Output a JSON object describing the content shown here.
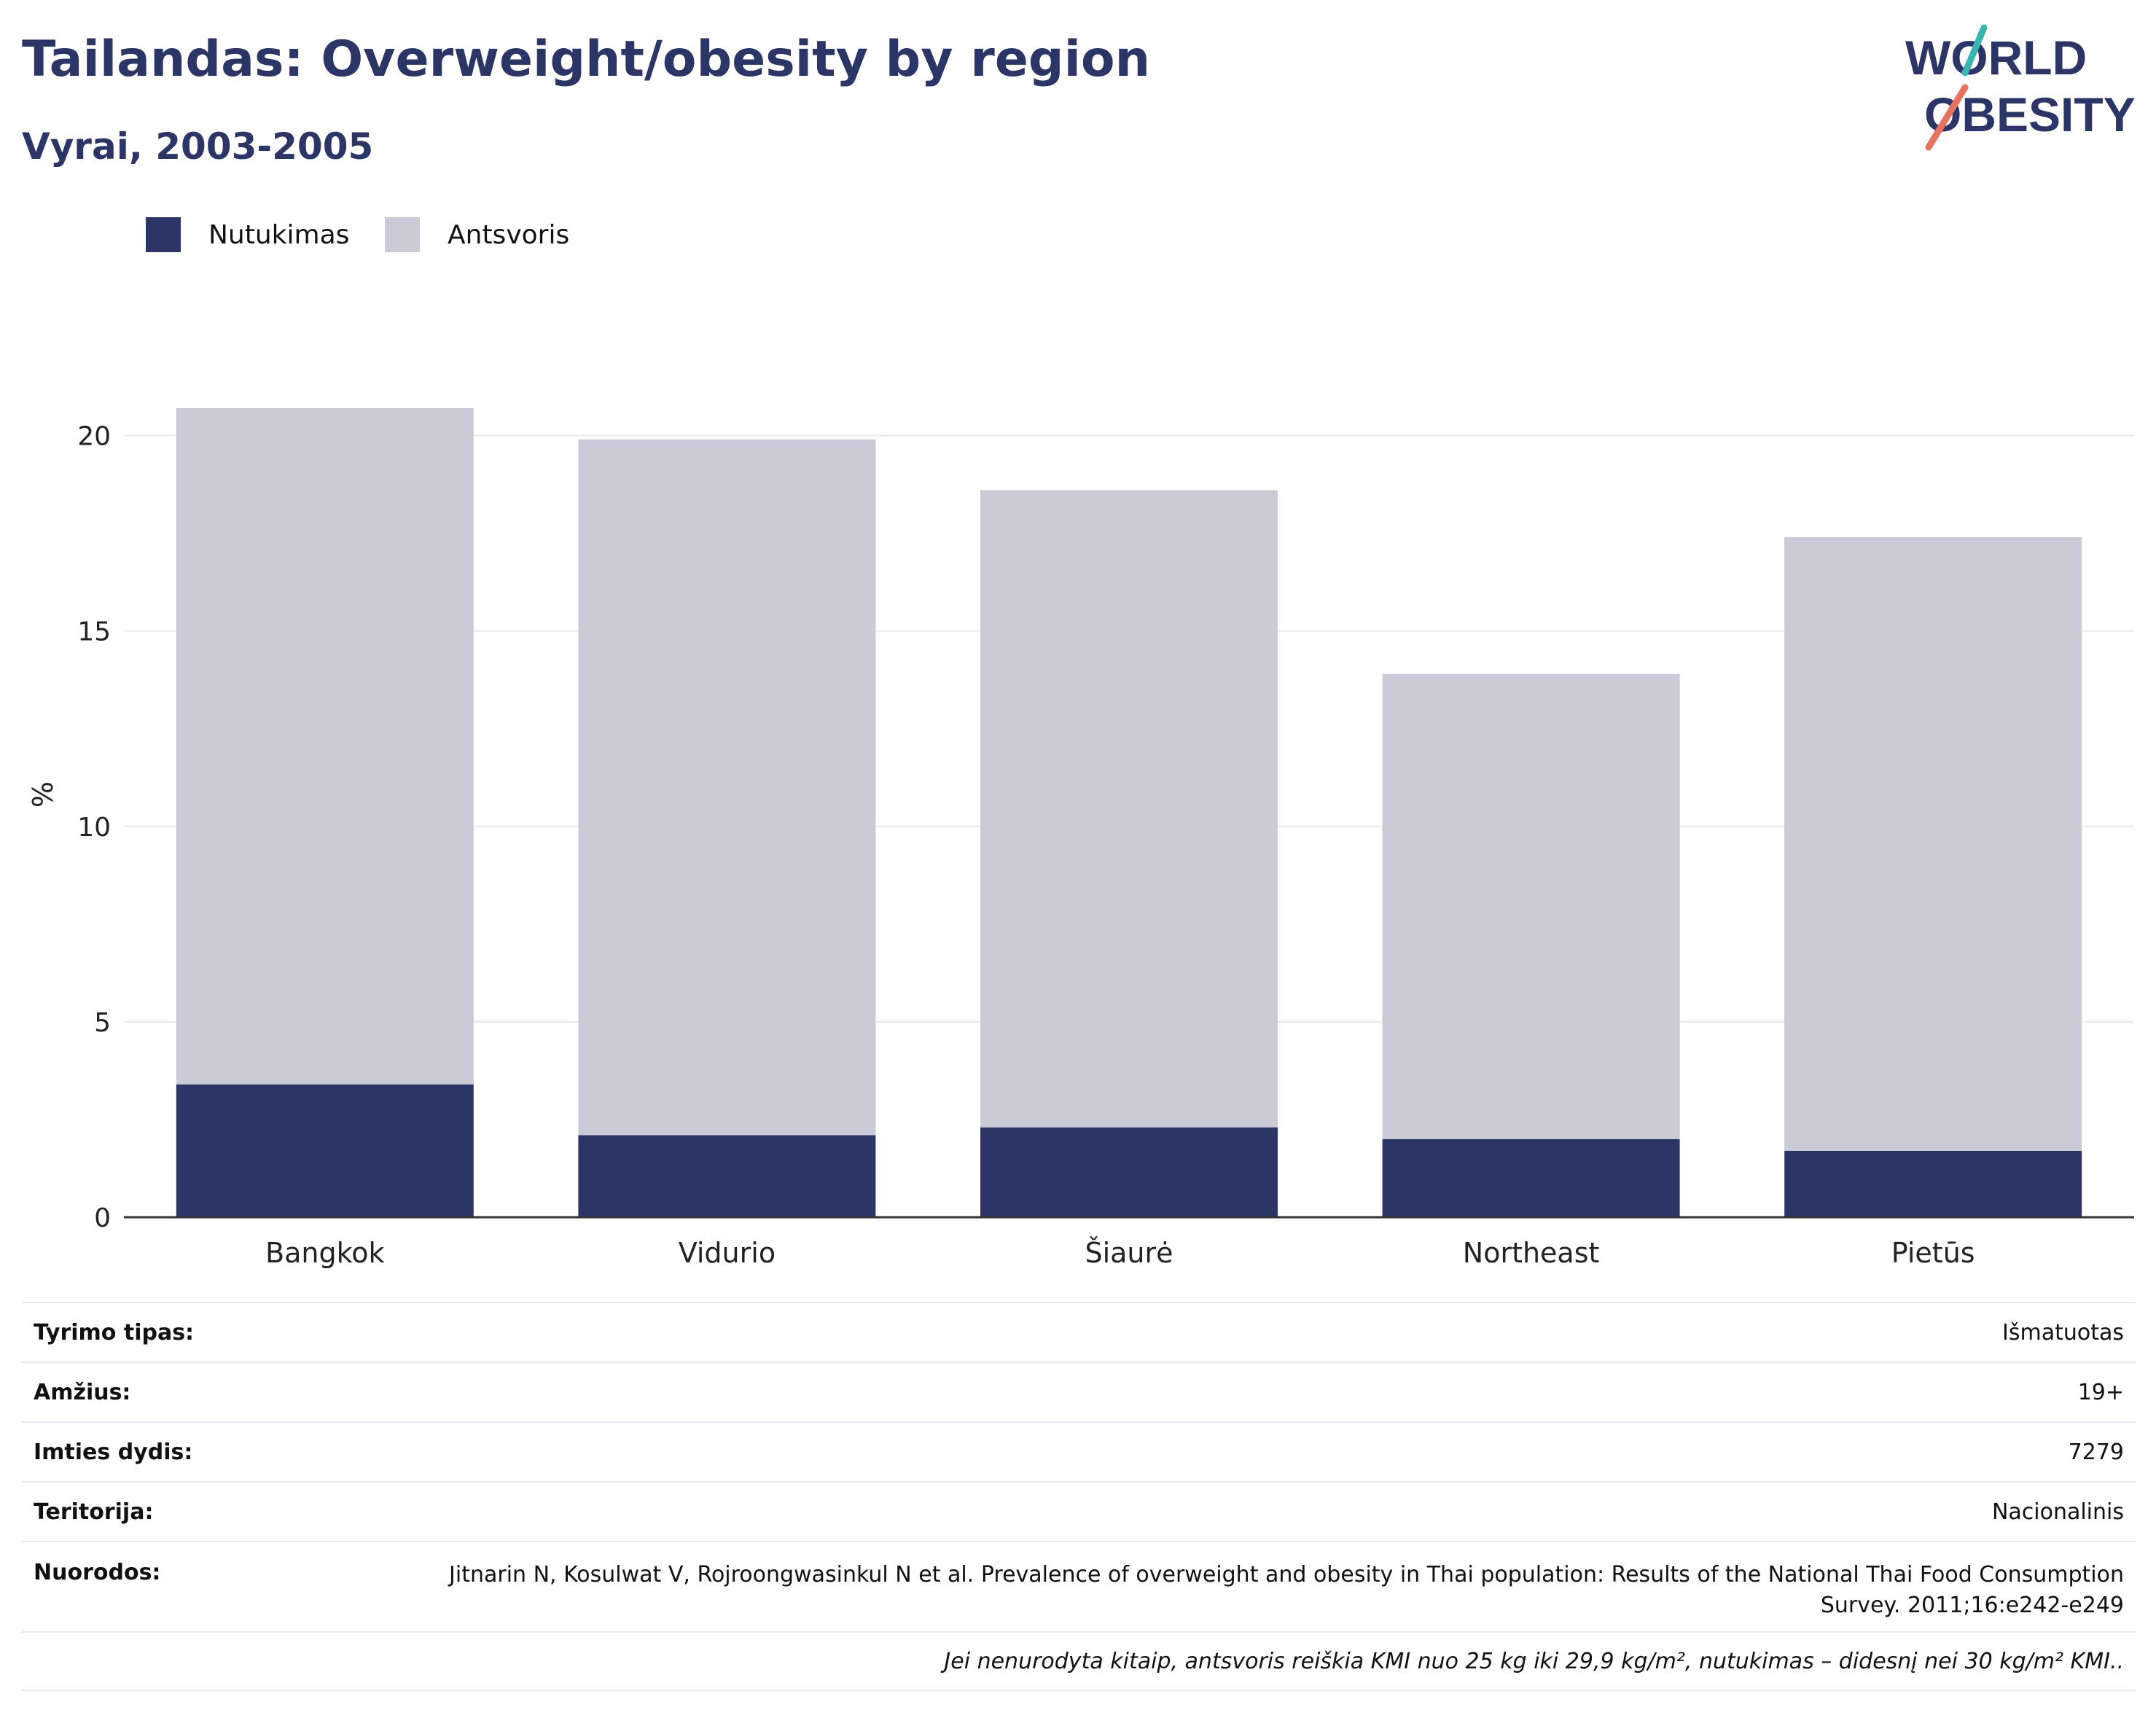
{
  "header": {
    "title": "Tailandas: Overweight/obesity by region",
    "subtitle": "Vyrai, 2003-2005"
  },
  "logo": {
    "line1": "WORLD",
    "line2": "OBESITY"
  },
  "legend": [
    {
      "label": "Nutukimas",
      "color": "#2b3566"
    },
    {
      "label": "Antsvoris",
      "color": "#c9cbd7"
    }
  ],
  "chart_data": {
    "type": "bar",
    "stacked": true,
    "categories": [
      "Bangkok",
      "Vidurio",
      "Šiaurė",
      "Northeast",
      "Pietūs"
    ],
    "series": [
      {
        "name": "Nutukimas",
        "color": "#2b3566",
        "values": [
          3.4,
          2.1,
          2.3,
          2.0,
          1.7
        ]
      },
      {
        "name": "Antsvoris",
        "color": "#c9cbd7",
        "values": [
          17.3,
          17.8,
          16.3,
          11.9,
          15.7
        ]
      }
    ],
    "ylabel": "%",
    "ylim": [
      0,
      20.7
    ],
    "yticks": [
      0,
      5,
      10,
      15,
      20
    ],
    "grid": true,
    "legend_position": "top-left"
  },
  "info": {
    "rows": [
      {
        "key": "Tyrimo tipas:",
        "value": "Išmatuotas"
      },
      {
        "key": "Amžius:",
        "value": "19+"
      },
      {
        "key": "Imties dydis:",
        "value": "7279"
      },
      {
        "key": "Teritorija:",
        "value": "Nacionalinis"
      }
    ],
    "reference": {
      "key": "Nuorodos:",
      "value": "Jitnarin N, Kosulwat V, Rojroongwasinkul N et al. Prevalence of overweight and obesity in Thai population: Results of the National Thai Food Consumption Survey. 2011;16:e242-e249"
    },
    "note": "Jei nenurodyta kitaip, antsvoris reiškia KMI nuo 25 kg iki 29,9 kg/m², nutukimas – didesnį nei 30 kg/m² KMI.."
  }
}
